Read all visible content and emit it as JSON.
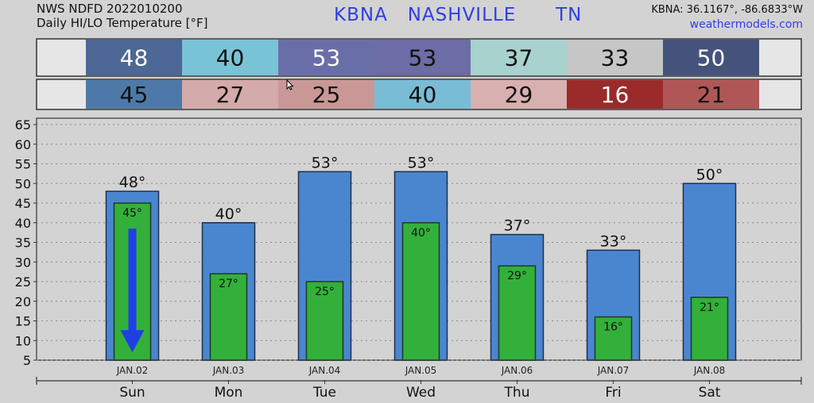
{
  "header": {
    "product": "NWS NDFD 2022010200",
    "subtitle": "Daily HI/LO Temperature [°F]",
    "station": "KBNA   NASHVILLE      TN",
    "coords": "KBNA: 36.1167°, -86.6833°W",
    "site": "weathermodels.com"
  },
  "colors": {
    "background": "#d3d3d3",
    "high_bar": "#4a86d0",
    "low_bar": "#33b03a",
    "arrow": "#1f3fe6",
    "title_blue": "#2f3fe0"
  },
  "strips": {
    "high": [
      {
        "value": "48",
        "bg": "#4d6796",
        "fg": "#ffffff"
      },
      {
        "value": "40",
        "bg": "#79c3d6",
        "fg": "#111111"
      },
      {
        "value": "53",
        "bg": "#6a6ea8",
        "fg": "#ffffff"
      },
      {
        "value": "53",
        "bg": "#6c6ca6",
        "fg": "#111111"
      },
      {
        "value": "37",
        "bg": "#a7d2cd",
        "fg": "#111111"
      },
      {
        "value": "33",
        "bg": "#c6c6c6",
        "fg": "#111111"
      },
      {
        "value": "50",
        "bg": "#45527c",
        "fg": "#ffffff"
      }
    ],
    "low": [
      {
        "value": "45",
        "bg": "#4d79a8",
        "fg": "#111111"
      },
      {
        "value": "27",
        "bg": "#d5aaaa",
        "fg": "#111111"
      },
      {
        "value": "25",
        "bg": "#c99896",
        "fg": "#111111"
      },
      {
        "value": "40",
        "bg": "#79bcd6",
        "fg": "#111111"
      },
      {
        "value": "29",
        "bg": "#d9b0b0",
        "fg": "#111111"
      },
      {
        "value": "16",
        "bg": "#9b2a2a",
        "fg": "#ffffff"
      },
      {
        "value": "21",
        "bg": "#b15656",
        "fg": "#111111"
      }
    ]
  },
  "chart_data": {
    "type": "bar",
    "categories": [
      "Sun",
      "Mon",
      "Tue",
      "Wed",
      "Thu",
      "Fri",
      "Sat"
    ],
    "dates": [
      "JAN.02",
      "JAN.03",
      "JAN.04",
      "JAN.05",
      "JAN.06",
      "JAN.07",
      "JAN.08"
    ],
    "series": [
      {
        "values": [
          48,
          40,
          53,
          53,
          37,
          33,
          50
        ]
      },
      {
        "values": [
          45,
          27,
          25,
          40,
          29,
          16,
          21
        ]
      }
    ],
    "high_labels": [
      "48°",
      "40°",
      "53°",
      "53°",
      "37°",
      "33°",
      "50°"
    ],
    "low_labels": [
      "45°",
      "27°",
      "25°",
      "40°",
      "29°",
      "16°",
      "21°"
    ],
    "yticks": [
      "65",
      "60",
      "55",
      "50",
      "45",
      "40",
      "35",
      "30",
      "25",
      "20",
      "15",
      "10",
      "5"
    ],
    "ylim": [
      5,
      65
    ],
    "grid": true,
    "annotation_arrow_day": "Sun"
  }
}
